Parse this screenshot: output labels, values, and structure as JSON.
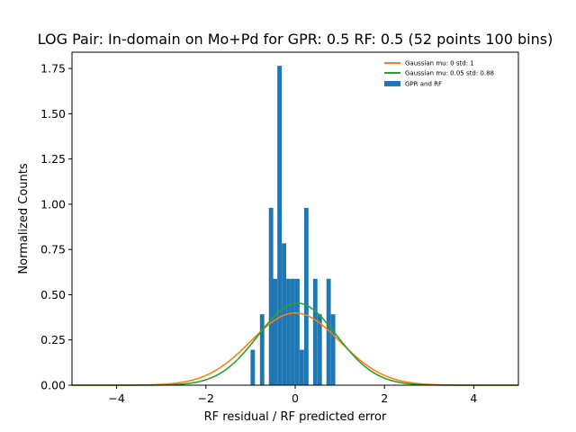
{
  "chart_data": {
    "type": "bar",
    "title": "LOG Pair: In-domain on Mo+Pd for GPR: 0.5 RF: 0.5 (52 points 100 bins)",
    "xlabel": "RF residual / RF predicted error",
    "ylabel": "Normalized Counts",
    "xlim": [
      -5.0,
      5.0
    ],
    "ylim": [
      0,
      1.84
    ],
    "xticks": [
      -4,
      -2,
      0,
      2,
      4
    ],
    "xtick_labels": [
      "−4",
      "−2",
      "0",
      "2",
      "4"
    ],
    "yticks": [
      0.0,
      0.25,
      0.5,
      0.75,
      1.0,
      1.25,
      1.5,
      1.75
    ],
    "ytick_labels": [
      "0.00",
      "0.25",
      "0.50",
      "0.75",
      "1.00",
      "1.25",
      "1.50",
      "1.75"
    ],
    "grid": false,
    "legend_position": "top-right",
    "bin_width": 0.0981,
    "histogram": {
      "name": "GPR and RF",
      "color": "#1f77b4",
      "bins": [
        {
          "x0": -1.0,
          "value": 0.196
        },
        {
          "x0": -0.79,
          "value": 0.392
        },
        {
          "x0": -0.59,
          "value": 0.98
        },
        {
          "x0": -0.5,
          "value": 0.588
        },
        {
          "x0": -0.4,
          "value": 1.765
        },
        {
          "x0": -0.3,
          "value": 0.784
        },
        {
          "x0": -0.2,
          "value": 0.588
        },
        {
          "x0": -0.1,
          "value": 0.588
        },
        {
          "x0": 0.0,
          "value": 0.588
        },
        {
          "x0": 0.1,
          "value": 0.196
        },
        {
          "x0": 0.2,
          "value": 0.98
        },
        {
          "x0": 0.4,
          "value": 0.588
        },
        {
          "x0": 0.5,
          "value": 0.392
        },
        {
          "x0": 0.7,
          "value": 0.588
        },
        {
          "x0": 0.8,
          "value": 0.392
        }
      ]
    },
    "series": [
      {
        "name": "Gaussian mu: 0 std: 1",
        "mu": 0,
        "std": 1,
        "color": "#ff7f0e"
      },
      {
        "name": "Gaussian mu: 0.05 std: 0.88",
        "mu": 0.05,
        "std": 0.88,
        "color": "#2ca02c"
      }
    ]
  }
}
